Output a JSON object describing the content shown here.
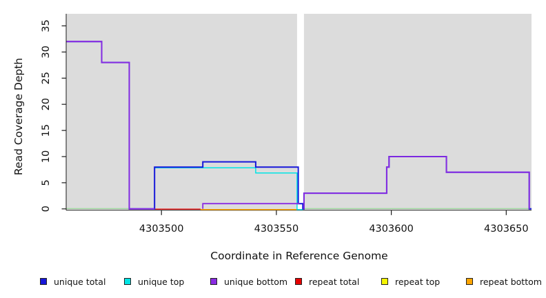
{
  "chart_data": {
    "type": "line",
    "subtype": "step",
    "title": "",
    "xlabel": "Coordinate in Reference Genome",
    "ylabel": "Read Coverage Depth",
    "xlim": [
      4303458.7,
      4303661
    ],
    "ylim": [
      0,
      35
    ],
    "x_ticks": [
      4303500,
      4303550,
      4303600,
      4303650
    ],
    "y_ticks": [
      0,
      5,
      10,
      15,
      20,
      25,
      30,
      35
    ],
    "grid": false,
    "plot_bg_color": "#DCDCDC",
    "masked_region": {
      "x_start": 4303559,
      "x_end": 4303562,
      "color": "#FFFFFF"
    },
    "zero_baseline": {
      "color": "#98D598",
      "segments": [
        [
          [
            4303458.7,
            0
          ],
          [
            4303486,
            0
          ]
        ],
        [
          [
            4303561.5,
            0
          ],
          [
            4303661,
            0
          ]
        ]
      ]
    },
    "series": [
      {
        "id": "unique_total",
        "label": "unique total",
        "color": "#1717D9",
        "segments": [
          [
            [
              4303458.7,
              32
            ],
            [
              4303474,
              32
            ],
            [
              4303474,
              28
            ],
            [
              4303486,
              28
            ],
            [
              4303486,
              0
            ],
            [
              4303497,
              0
            ],
            [
              4303497,
              8
            ],
            [
              4303518,
              8
            ],
            [
              4303518,
              9
            ],
            [
              4303541,
              9
            ],
            [
              4303541,
              8
            ],
            [
              4303559.5,
              8
            ],
            [
              4303559.5,
              1
            ],
            [
              4303561.5,
              1
            ],
            [
              4303561.5,
              0
            ],
            [
              4303562,
              0
            ],
            [
              4303562,
              3
            ],
            [
              4303598,
              3
            ],
            [
              4303598,
              8
            ],
            [
              4303599,
              8
            ],
            [
              4303599,
              10
            ],
            [
              4303624,
              10
            ],
            [
              4303624,
              7
            ],
            [
              4303660,
              7
            ],
            [
              4303660,
              0
            ],
            [
              4303661,
              0
            ]
          ]
        ]
      },
      {
        "id": "unique_top",
        "label": "unique top",
        "color": "#00E5E5",
        "segments": [
          [
            [
              4303497,
              0
            ],
            [
              4303497,
              8
            ],
            [
              4303541,
              8
            ],
            [
              4303541,
              7
            ],
            [
              4303559,
              7
            ],
            [
              4303559,
              0
            ],
            [
              4303561.5,
              0
            ]
          ]
        ]
      },
      {
        "id": "unique_bottom",
        "label": "unique bottom",
        "color": "#8A2BE2",
        "segments": [
          [
            [
              4303458.7,
              32
            ],
            [
              4303474,
              32
            ],
            [
              4303474,
              28
            ],
            [
              4303486,
              28
            ],
            [
              4303486,
              0
            ],
            [
              4303497,
              0
            ]
          ],
          [
            [
              4303518,
              0
            ],
            [
              4303518,
              1
            ],
            [
              4303560,
              1
            ]
          ],
          [
            [
              4303562,
              0
            ],
            [
              4303562,
              3
            ],
            [
              4303598,
              3
            ],
            [
              4303598,
              8
            ],
            [
              4303599,
              8
            ],
            [
              4303599,
              10
            ],
            [
              4303624,
              10
            ],
            [
              4303624,
              7
            ],
            [
              4303660,
              7
            ],
            [
              4303660,
              0
            ]
          ]
        ]
      },
      {
        "id": "repeat_total",
        "label": "repeat total",
        "color": "#E60000",
        "segments": [
          [
            [
              4303497,
              0
            ],
            [
              4303517,
              0
            ]
          ]
        ]
      },
      {
        "id": "repeat_top",
        "label": "repeat top",
        "color": "#F5F500",
        "segments": []
      },
      {
        "id": "repeat_bottom",
        "label": "repeat bottom",
        "color": "#FFA500",
        "segments": [
          [
            [
              4303517,
              0
            ],
            [
              4303559,
              0
            ]
          ]
        ]
      }
    ]
  }
}
